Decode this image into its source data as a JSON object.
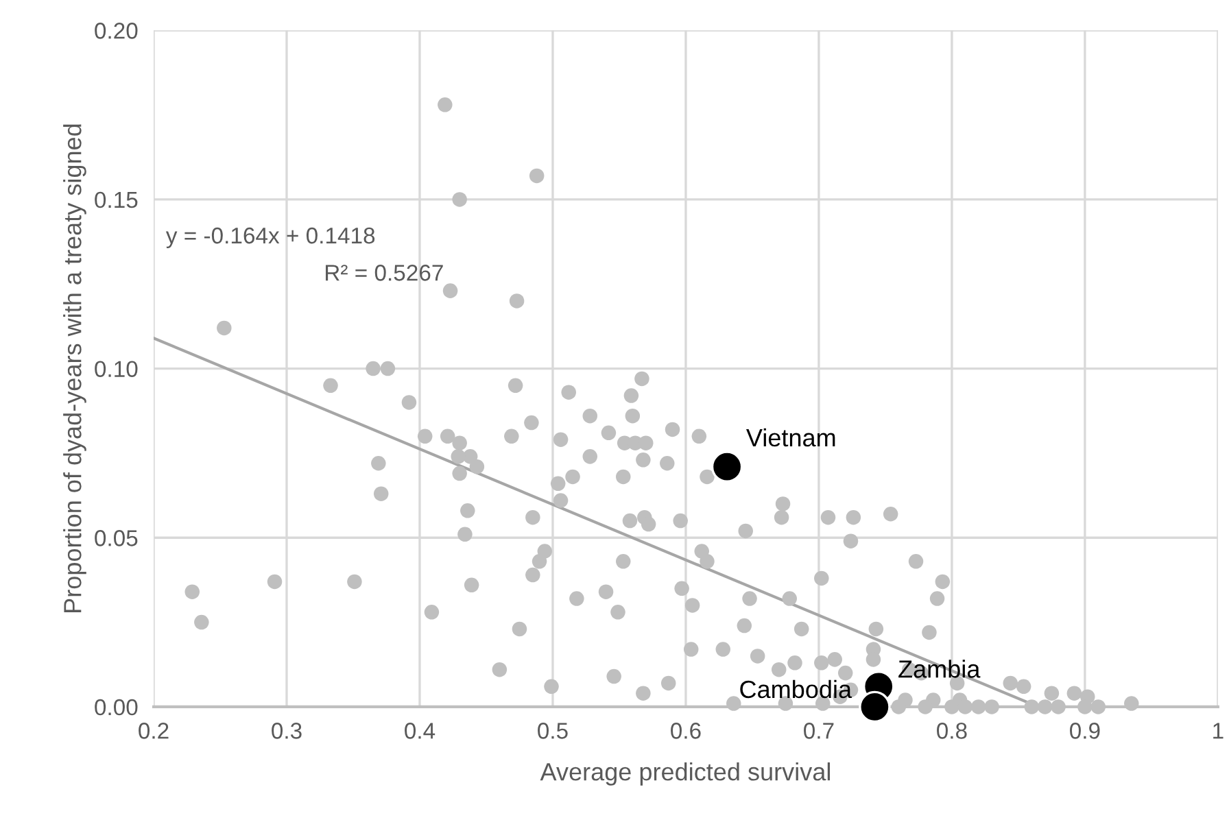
{
  "chart_data": {
    "type": "scatter",
    "xlabel": "Average predicted survival",
    "ylabel": "Proportion of dyad-years with a treaty signed",
    "xlim": [
      0.2,
      1
    ],
    "ylim": [
      0,
      0.2
    ],
    "xticks": [
      0.2,
      0.3,
      0.4,
      0.5,
      0.6,
      0.7,
      0.8,
      0.9,
      1
    ],
    "yticks": [
      {
        "value": 0,
        "label": "0.00"
      },
      {
        "value": 0.05,
        "label": "0.05"
      },
      {
        "value": 0.1,
        "label": "0.10"
      },
      {
        "value": 0.15,
        "label": "0.15"
      },
      {
        "value": 0.2,
        "label": "0.20"
      }
    ],
    "grid": true,
    "legend": false,
    "marker": "circle",
    "series": [
      {
        "color": "#bfbfbf",
        "x": [
          0.229,
          0.236,
          0.253,
          0.291,
          0.351,
          0.333,
          0.365,
          0.376,
          0.392,
          0.369,
          0.371,
          0.404,
          0.409,
          0.419,
          0.43,
          0.423,
          0.421,
          0.43,
          0.438,
          0.443,
          0.429,
          0.43,
          0.436,
          0.434,
          0.439,
          0.488,
          0.473,
          0.472,
          0.484,
          0.469,
          0.485,
          0.494,
          0.49,
          0.485,
          0.475,
          0.46,
          0.499,
          0.512,
          0.559,
          0.567,
          0.528,
          0.56,
          0.506,
          0.542,
          0.554,
          0.562,
          0.57,
          0.59,
          0.61,
          0.528,
          0.568,
          0.586,
          0.553,
          0.515,
          0.504,
          0.506,
          0.616,
          0.558,
          0.569,
          0.572,
          0.596,
          0.645,
          0.673,
          0.672,
          0.707,
          0.726,
          0.724,
          0.553,
          0.612,
          0.616,
          0.702,
          0.518,
          0.54,
          0.549,
          0.597,
          0.605,
          0.648,
          0.678,
          0.644,
          0.687,
          0.604,
          0.628,
          0.654,
          0.67,
          0.682,
          0.702,
          0.712,
          0.72,
          0.546,
          0.587,
          0.568,
          0.636,
          0.675,
          0.703,
          0.716,
          0.724,
          0.754,
          0.773,
          0.793,
          0.789,
          0.743,
          0.783,
          0.741,
          0.741,
          0.768,
          0.777,
          0.804,
          0.844,
          0.854,
          0.875,
          0.892,
          0.902,
          0.935,
          0.765,
          0.786,
          0.806,
          0.76,
          0.78,
          0.8,
          0.81,
          0.82,
          0.83,
          0.86,
          0.87,
          0.88,
          0.9,
          0.91
        ],
        "values": [
          0.034,
          0.025,
          0.112,
          0.037,
          0.037,
          0.095,
          0.1,
          0.1,
          0.09,
          0.072,
          0.063,
          0.08,
          0.028,
          0.178,
          0.15,
          0.123,
          0.08,
          0.078,
          0.074,
          0.071,
          0.074,
          0.069,
          0.058,
          0.051,
          0.036,
          0.157,
          0.12,
          0.095,
          0.084,
          0.08,
          0.056,
          0.046,
          0.043,
          0.039,
          0.023,
          0.011,
          0.006,
          0.093,
          0.092,
          0.097,
          0.086,
          0.086,
          0.079,
          0.081,
          0.078,
          0.078,
          0.078,
          0.082,
          0.08,
          0.074,
          0.073,
          0.072,
          0.068,
          0.068,
          0.066,
          0.061,
          0.068,
          0.055,
          0.056,
          0.054,
          0.055,
          0.052,
          0.06,
          0.056,
          0.056,
          0.056,
          0.049,
          0.043,
          0.046,
          0.043,
          0.038,
          0.032,
          0.034,
          0.028,
          0.035,
          0.03,
          0.032,
          0.032,
          0.024,
          0.023,
          0.017,
          0.017,
          0.015,
          0.011,
          0.013,
          0.013,
          0.014,
          0.01,
          0.009,
          0.007,
          0.004,
          0.001,
          0.001,
          0.001,
          0.003,
          0.005,
          0.057,
          0.043,
          0.037,
          0.032,
          0.023,
          0.022,
          0.017,
          0.014,
          0.011,
          0.01,
          0.007,
          0.007,
          0.006,
          0.004,
          0.004,
          0.003,
          0.001,
          0.002,
          0.002,
          0.002,
          0.0,
          0.0,
          0.0,
          0.0,
          0.0,
          0.0,
          0.0,
          0.0,
          0.0,
          0.0,
          0.0
        ]
      },
      {
        "type": "line",
        "marker": "none",
        "color": "#a6a6a6",
        "x": [
          0.2,
          0.865
        ],
        "values": [
          0.109,
          0.0
        ]
      },
      {
        "color": "#000000",
        "x": [
          0.631,
          0.745,
          0.742
        ],
        "values": [
          0.071,
          0.006,
          0.0
        ]
      }
    ],
    "annotations": [
      {
        "text": "Vietnam",
        "x": 0.631,
        "y": 0.071
      },
      {
        "text": "Zambia",
        "x": 0.745,
        "y": 0.006
      },
      {
        "text": "Cambodia",
        "x": 0.742,
        "y": 0.0
      },
      "y = -0.164x + 0.1418",
      "R² = 0.5267"
    ]
  }
}
